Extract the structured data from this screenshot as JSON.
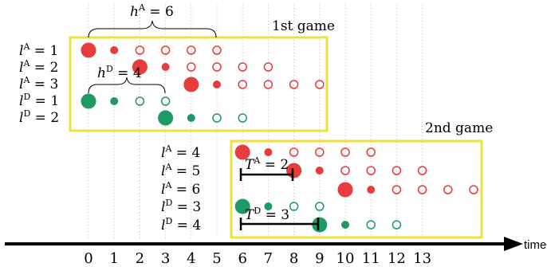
{
  "colors": {
    "attacker": "#e63c3c",
    "defender": "#1e9a64",
    "box": "#ede239",
    "axis": "#000000",
    "grid": "#b9b9d0"
  },
  "axis": {
    "label": "time",
    "ticks": [
      "0",
      "1",
      "2",
      "3",
      "4",
      "5",
      "6",
      "7",
      "8",
      "9",
      "10",
      "11",
      "12",
      "13"
    ]
  },
  "games": [
    {
      "title": "1st game",
      "rows": [
        {
          "base": "l",
          "sup": "A",
          "rest": " = 1",
          "player": "attacker",
          "start": 0,
          "big": 0,
          "length": 6
        },
        {
          "base": "l",
          "sup": "A",
          "rest": " = 2",
          "player": "attacker",
          "start": 2,
          "big": 2,
          "length": 6
        },
        {
          "base": "l",
          "sup": "A",
          "rest": " = 3",
          "player": "attacker",
          "start": 4,
          "big": 4,
          "length": 6
        },
        {
          "base": "l",
          "sup": "D",
          "rest": " = 1",
          "player": "defender",
          "start": 0,
          "big": 0,
          "length": 4
        },
        {
          "base": "l",
          "sup": "D",
          "rest": " = 2",
          "player": "defender",
          "start": 3,
          "big": 3,
          "length": 4
        }
      ],
      "annotations": [
        {
          "base": "h",
          "sup": "A",
          "rest": " = 6"
        },
        {
          "base": "h",
          "sup": "D",
          "rest": " = 4"
        }
      ]
    },
    {
      "title": "2nd game",
      "rows": [
        {
          "base": "l",
          "sup": "A",
          "rest": " = 4",
          "player": "attacker",
          "start": 6,
          "big": 6,
          "length": 6
        },
        {
          "base": "l",
          "sup": "A",
          "rest": " = 5",
          "player": "attacker",
          "start": 8,
          "big": 8,
          "length": 6
        },
        {
          "base": "l",
          "sup": "A",
          "rest": " = 6",
          "player": "attacker",
          "start": 10,
          "big": 10,
          "length": 6
        },
        {
          "base": "l",
          "sup": "D",
          "rest": " = 3",
          "player": "defender",
          "start": 6,
          "big": 6,
          "length": 4
        },
        {
          "base": "l",
          "sup": "D",
          "rest": " = 4",
          "player": "defender",
          "start": 9,
          "big": 9,
          "length": 4
        }
      ],
      "annotations": [
        {
          "base": "T",
          "sup": "A",
          "rest": " = 2"
        },
        {
          "base": "T",
          "sup": "D",
          "rest": " = 3"
        }
      ]
    }
  ]
}
